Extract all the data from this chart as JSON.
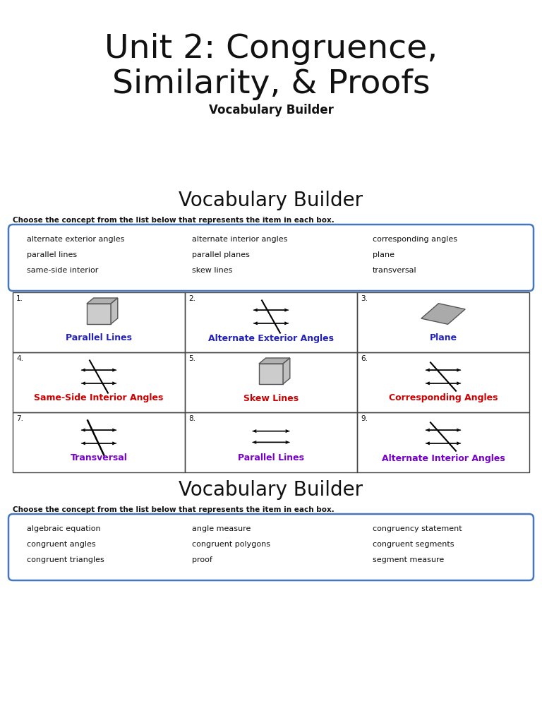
{
  "title_line1": "Unit 2: Congruence,",
  "title_line2": "Similarity, & Proofs",
  "subtitle": "Vocabulary Builder",
  "bg_color": "#ffffff",
  "section1_title": "Vocabulary Builder",
  "section1_instruction": "Choose the concept from the list below that represents the item in each box.",
  "section1_words": [
    [
      "alternate exterior angles",
      "alternate interior angles",
      "corresponding angles"
    ],
    [
      "parallel lines",
      "parallel planes",
      "plane"
    ],
    [
      "same-side interior",
      "skew lines",
      "transversal"
    ]
  ],
  "grid_labels": [
    "1.",
    "2.",
    "3.",
    "4.",
    "5.",
    "6.",
    "7.",
    "8.",
    "9."
  ],
  "grid_answers": [
    "Parallel Lines",
    "Alternate Exterior Angles",
    "Plane",
    "Same-Side Interior Angles",
    "Skew Lines",
    "Corresponding Angles",
    "Transversal",
    "Parallel Lines",
    "Alternate Interior Angles"
  ],
  "grid_answer_colors": [
    "#2222bb",
    "#2222bb",
    "#2222bb",
    "#cc0000",
    "#cc0000",
    "#cc0000",
    "#7700cc",
    "#7700cc",
    "#7700cc"
  ],
  "section2_title": "Vocabulary Builder",
  "section2_instruction": "Choose the concept from the list below that represents the item in each box.",
  "section2_words": [
    [
      "algebraic equation",
      "angle measure",
      "congruency statement"
    ],
    [
      "congruent angles",
      "congruent polygons",
      "congruent segments"
    ],
    [
      "congruent triangles",
      "proof",
      "segment measure"
    ]
  ]
}
